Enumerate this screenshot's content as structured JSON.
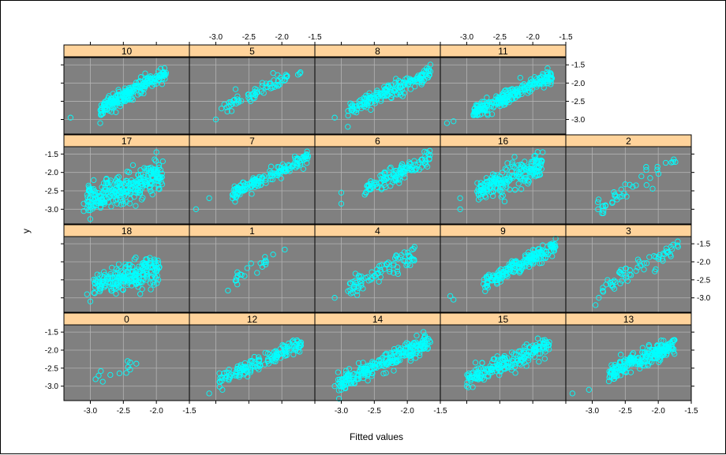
{
  "chart_data": {
    "type": "scatter",
    "title": "",
    "xlabel": "Fitted values",
    "ylabel": "y",
    "xlim": [
      -3.4,
      -1.5
    ],
    "ylim": [
      -3.4,
      -1.3
    ],
    "x_ticks": [
      -3.0,
      -2.5,
      -2.0,
      -1.5
    ],
    "y_ticks": [
      -3.0,
      -2.5,
      -2.0,
      -1.5
    ],
    "x_tick_labels": [
      "-3.0",
      "-2.5",
      "-2.0",
      "-1.5"
    ],
    "y_tick_labels": [
      "-3.0",
      "-2.5",
      "-2.0",
      "-1.5"
    ],
    "grid": true,
    "colors": {
      "panel_background": "#808080",
      "grid": "#b3b3b3",
      "point": "#00ffff",
      "strip": "#ffd39b"
    },
    "panels": [
      {
        "label": "0",
        "n": 12,
        "xmin": -3.05,
        "xmax": -2.3,
        "slope": 0.75,
        "intercept": -0.6,
        "noise": 0.12,
        "outliers": []
      },
      {
        "label": "12",
        "n": 150,
        "xmin": -2.95,
        "xmax": -1.7,
        "slope": 0.85,
        "intercept": -0.35,
        "noise": 0.1,
        "outliers": [
          [
            -3.1,
            -3.2
          ],
          [
            -2.9,
            -3.1
          ]
        ]
      },
      {
        "label": "14",
        "n": 240,
        "xmin": -3.05,
        "xmax": -1.65,
        "slope": 0.85,
        "intercept": -0.35,
        "noise": 0.12,
        "outliers": [
          [
            -3.1,
            -3.0
          ],
          [
            -3.0,
            -3.1
          ]
        ]
      },
      {
        "label": "15",
        "n": 200,
        "xmin": -3.0,
        "xmax": -1.75,
        "slope": 0.8,
        "intercept": -0.45,
        "noise": 0.13,
        "outliers": [
          [
            -3.0,
            -3.0
          ]
        ]
      },
      {
        "label": "13",
        "n": 220,
        "xmin": -2.75,
        "xmax": -1.75,
        "slope": 0.8,
        "intercept": -0.45,
        "noise": 0.12,
        "outliers": [
          [
            -3.3,
            -3.2
          ],
          [
            -3.05,
            -3.1
          ]
        ]
      },
      {
        "label": "18",
        "n": 220,
        "xmin": -2.95,
        "xmax": -1.95,
        "slope": 0.5,
        "intercept": -1.2,
        "noise": 0.2,
        "outliers": [
          [
            -3.05,
            -2.9
          ],
          [
            -3.0,
            -3.1
          ]
        ]
      },
      {
        "label": "1",
        "n": 22,
        "xmin": -2.85,
        "xmax": -1.85,
        "slope": 1.0,
        "intercept": 0.2,
        "noise": 0.1,
        "outliers": []
      },
      {
        "label": "4",
        "n": 80,
        "xmin": -2.9,
        "xmax": -1.85,
        "slope": 0.95,
        "intercept": 0.0,
        "noise": 0.15,
        "outliers": [
          [
            -3.1,
            -3.0
          ]
        ]
      },
      {
        "label": "9",
        "n": 200,
        "xmin": -2.75,
        "xmax": -1.65,
        "slope": 0.95,
        "intercept": 0.0,
        "noise": 0.1,
        "outliers": [
          [
            -3.25,
            -2.95
          ],
          [
            -3.2,
            -3.05
          ]
        ]
      },
      {
        "label": "3",
        "n": 60,
        "xmin": -2.85,
        "xmax": -1.7,
        "slope": 1.0,
        "intercept": 0.1,
        "noise": 0.12,
        "outliers": [
          [
            -2.95,
            -3.2
          ],
          [
            -2.9,
            -3.0
          ]
        ]
      },
      {
        "label": "17",
        "n": 280,
        "xmin": -3.05,
        "xmax": -1.9,
        "slope": 0.55,
        "intercept": -1.05,
        "noise": 0.2,
        "outliers": [
          [
            -3.1,
            -3.05
          ],
          [
            -3.1,
            -2.85
          ],
          [
            -2.0,
            -1.45
          ]
        ]
      },
      {
        "label": "7",
        "n": 160,
        "xmin": -2.75,
        "xmax": -1.6,
        "slope": 0.85,
        "intercept": -0.25,
        "noise": 0.1,
        "outliers": [
          [
            -3.3,
            -3.0
          ],
          [
            -3.1,
            -2.7
          ]
        ]
      },
      {
        "label": "6",
        "n": 120,
        "xmin": -2.65,
        "xmax": -1.65,
        "slope": 0.95,
        "intercept": 0.0,
        "noise": 0.13,
        "outliers": [
          [
            -3.0,
            -2.85
          ],
          [
            -3.0,
            -2.55
          ]
        ]
      },
      {
        "label": "16",
        "n": 200,
        "xmin": -2.85,
        "xmax": -1.85,
        "slope": 0.7,
        "intercept": -0.55,
        "noise": 0.18,
        "outliers": [
          [
            -3.1,
            -2.7
          ],
          [
            -3.1,
            -3.0
          ],
          [
            -1.85,
            -1.45
          ]
        ]
      },
      {
        "label": "2",
        "n": 40,
        "xmin": -2.95,
        "xmax": -1.7,
        "slope": 1.1,
        "intercept": 0.25,
        "noise": 0.12,
        "outliers": []
      },
      {
        "label": "10",
        "n": 220,
        "xmin": -2.85,
        "xmax": -1.85,
        "slope": 1.0,
        "intercept": 0.15,
        "noise": 0.1,
        "outliers": [
          [
            -3.3,
            -2.95
          ],
          [
            -2.85,
            -3.1
          ]
        ]
      },
      {
        "label": "5",
        "n": 70,
        "xmin": -2.95,
        "xmax": -1.7,
        "slope": 0.85,
        "intercept": -0.2,
        "noise": 0.12,
        "outliers": [
          [
            -3.0,
            -3.0
          ]
        ]
      },
      {
        "label": "8",
        "n": 180,
        "xmin": -2.9,
        "xmax": -1.65,
        "slope": 0.85,
        "intercept": -0.3,
        "noise": 0.1,
        "outliers": [
          [
            -3.1,
            -2.95
          ],
          [
            -2.9,
            -3.2
          ]
        ]
      },
      {
        "label": "11",
        "n": 230,
        "xmin": -2.9,
        "xmax": -1.7,
        "slope": 0.85,
        "intercept": -0.35,
        "noise": 0.1,
        "outliers": [
          [
            -3.3,
            -3.1
          ],
          [
            -3.2,
            -3.05
          ]
        ]
      }
    ]
  }
}
